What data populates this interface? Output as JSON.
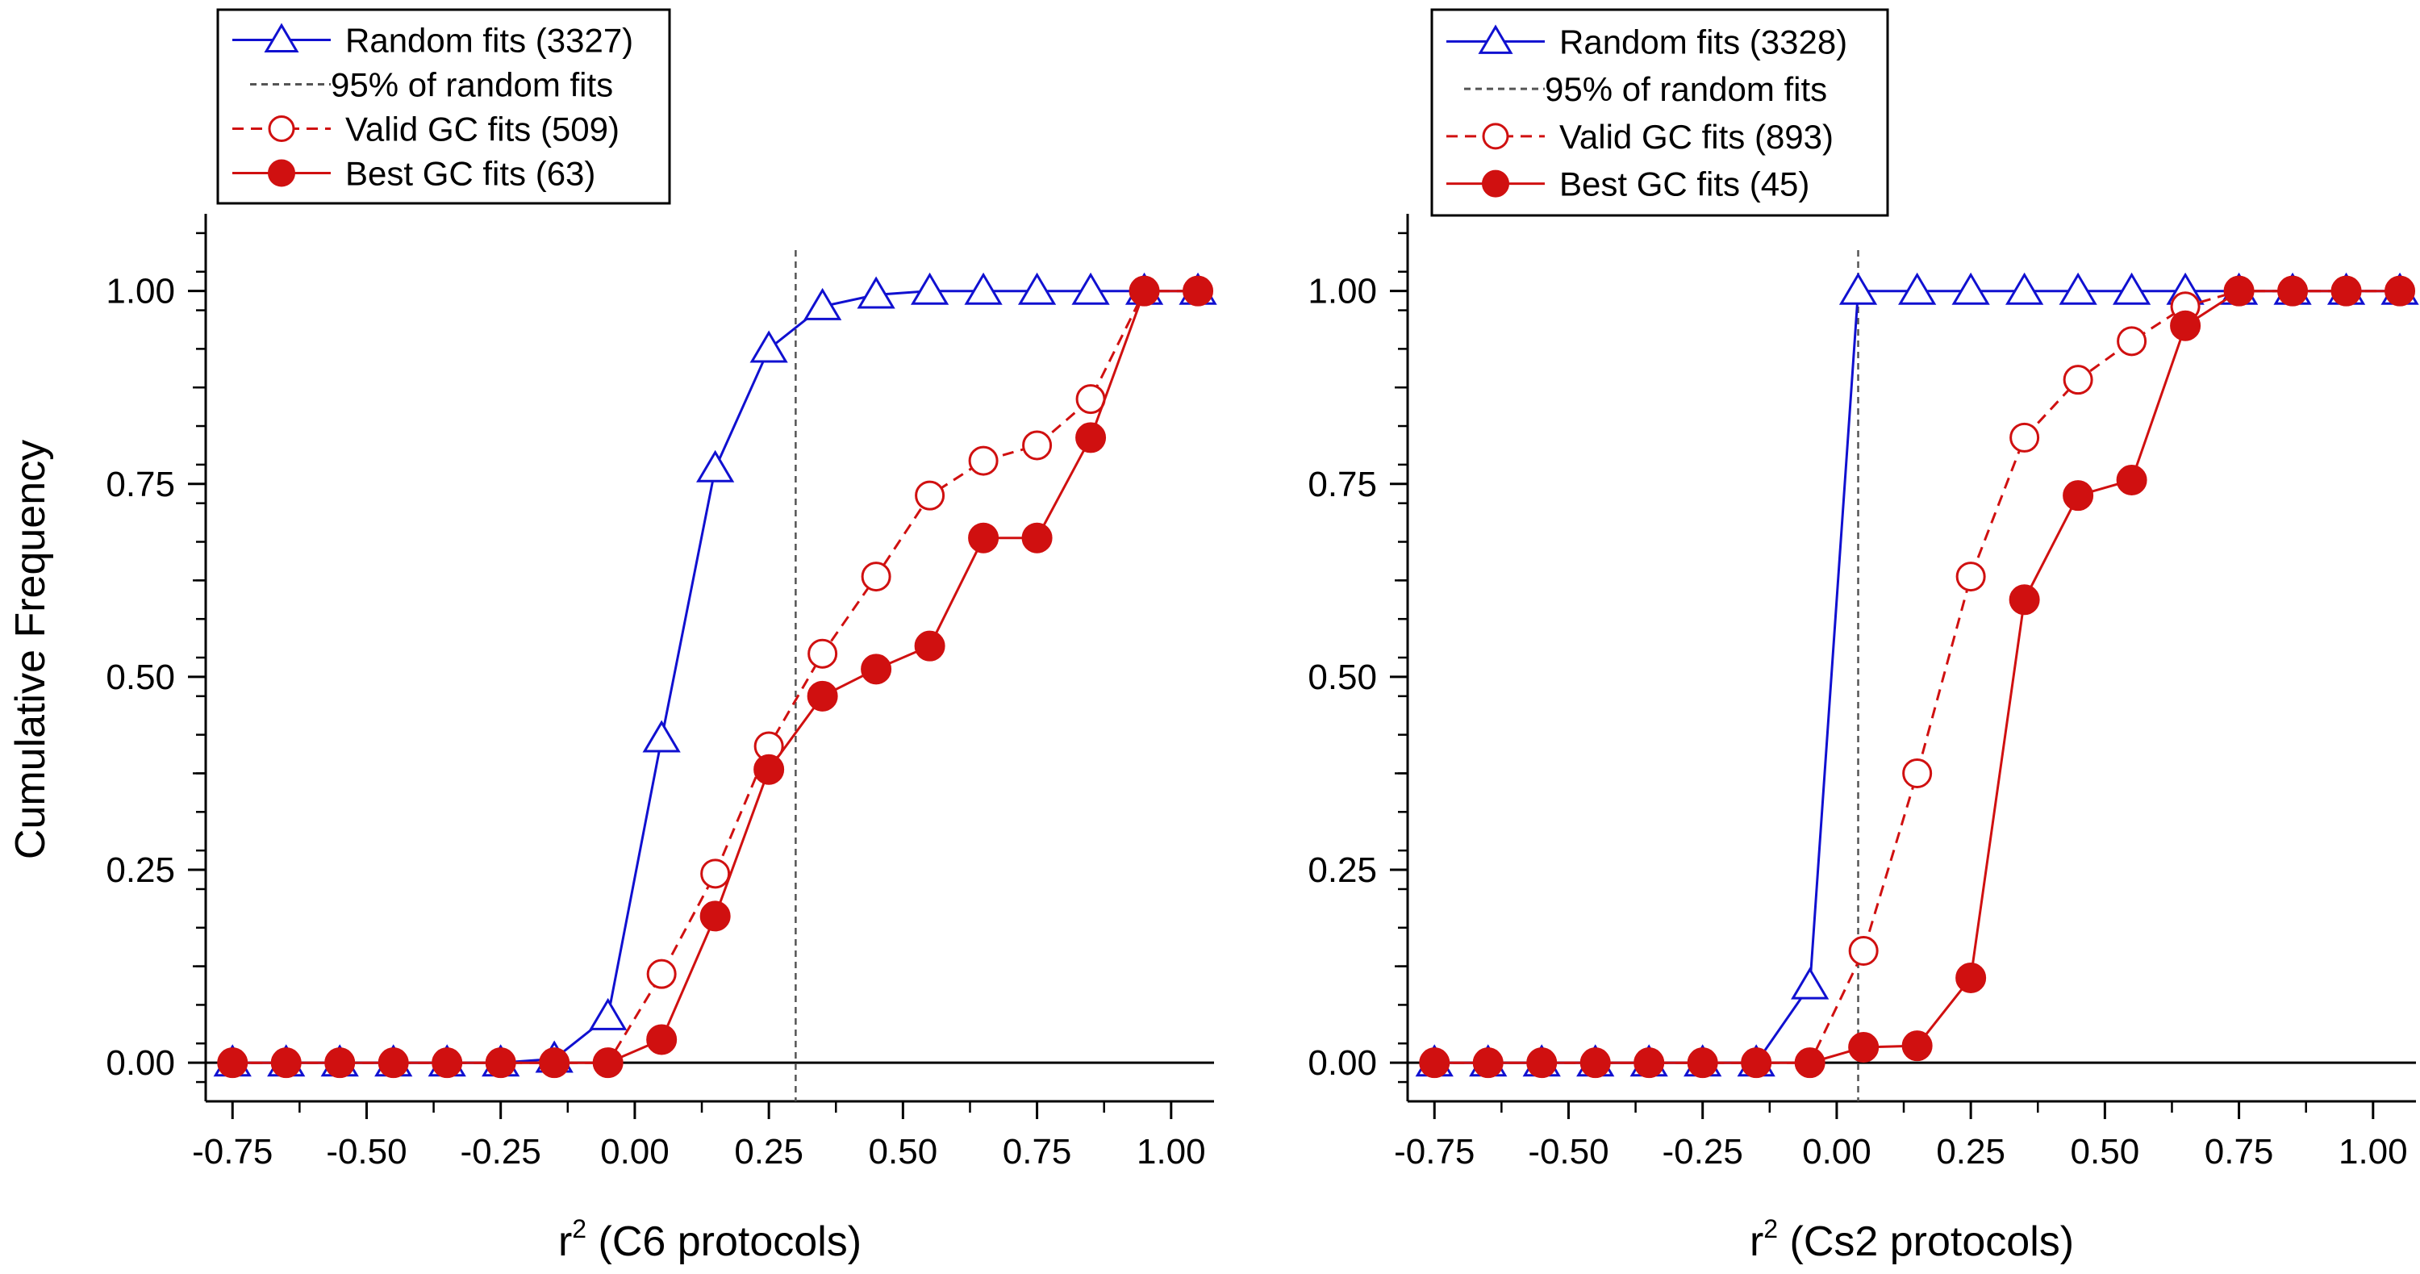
{
  "ylabel": "Cumulative Frequency",
  "colors": {
    "random": "#1010d0",
    "valid": "#d01010",
    "best": "#d01010",
    "threshold": "#555555"
  },
  "chart_data": [
    {
      "type": "line",
      "xlabel_pre": "r",
      "xlabel_sup": "2",
      "xlabel_post": " (C6 protocols)",
      "ylabel": "Cumulative Frequency",
      "xlim": [
        -0.8,
        1.08
      ],
      "ylim": [
        -0.05,
        1.1
      ],
      "xticks": [
        "-0.75",
        "-0.50",
        "-0.25",
        "0.00",
        "0.25",
        "0.50",
        "0.75",
        "1.00"
      ],
      "yticks": [
        "0.00",
        "0.25",
        "0.50",
        "0.75",
        "1.00"
      ],
      "x": [
        -0.75,
        -0.65,
        -0.55,
        -0.45,
        -0.35,
        -0.25,
        -0.15,
        -0.05,
        0.05,
        0.15,
        0.25,
        0.35,
        0.45,
        0.55,
        0.65,
        0.75,
        0.85,
        0.95,
        1.05
      ],
      "threshold_x": 0.3,
      "legend_position": "top-left",
      "series": [
        {
          "key": "random",
          "name": "Random fits (3327)",
          "marker": "open-triangle",
          "linestyle": "solid",
          "values": [
            0,
            0,
            0,
            0,
            0,
            0,
            0.005,
            0.06,
            0.42,
            0.77,
            0.925,
            0.98,
            0.995,
            1.0,
            1.0,
            1.0,
            1.0,
            1.0,
            1.0
          ]
        },
        {
          "key": "threshold",
          "name": "95% of random fits",
          "marker": "none",
          "linestyle": "dashed"
        },
        {
          "key": "valid",
          "name": "Valid GC fits (509)",
          "marker": "open-circle",
          "linestyle": "dashed",
          "values": [
            0,
            0,
            0,
            0,
            0,
            0,
            0,
            0,
            0.115,
            0.245,
            0.41,
            0.53,
            0.63,
            0.735,
            0.78,
            0.8,
            0.86,
            1.0,
            1.0
          ]
        },
        {
          "key": "best",
          "name": "Best GC fits (63)",
          "marker": "filled-circle",
          "linestyle": "solid",
          "values": [
            0,
            0,
            0,
            0,
            0,
            0,
            0,
            0,
            0.03,
            0.19,
            0.38,
            0.475,
            0.51,
            0.54,
            0.68,
            0.68,
            0.81,
            1.0,
            1.0
          ]
        }
      ]
    },
    {
      "type": "line",
      "xlabel_pre": "r",
      "xlabel_sup": "2",
      "xlabel_post": " (Cs2 protocols)",
      "ylabel": "",
      "xlim": [
        -0.8,
        1.08
      ],
      "ylim": [
        -0.05,
        1.1
      ],
      "xticks": [
        "-0.75",
        "-0.50",
        "-0.25",
        "0.00",
        "0.25",
        "0.50",
        "0.75",
        "1.00"
      ],
      "yticks": [
        "0.00",
        "0.25",
        "0.50",
        "0.75",
        "1.00"
      ],
      "threshold_x": 0.04,
      "legend_position": "top-left",
      "series": [
        {
          "key": "random",
          "name": "Random fits (3328)",
          "marker": "open-triangle",
          "linestyle": "solid",
          "x": [
            -0.75,
            -0.65,
            -0.55,
            -0.45,
            -0.35,
            -0.25,
            -0.15,
            -0.05,
            0.04,
            0.15,
            0.25,
            0.35,
            0.45,
            0.55,
            0.65,
            0.75,
            0.85,
            0.95,
            1.05
          ],
          "values": [
            0,
            0,
            0,
            0,
            0,
            0,
            0,
            0.1,
            1.0,
            1.0,
            1.0,
            1.0,
            1.0,
            1.0,
            1.0,
            1.0,
            1.0,
            1.0,
            1.0
          ]
        },
        {
          "key": "threshold",
          "name": "95% of random fits",
          "marker": "none",
          "linestyle": "dashed"
        },
        {
          "key": "valid",
          "name": "Valid GC fits (893)",
          "marker": "open-circle",
          "linestyle": "dashed",
          "x": [
            -0.75,
            -0.65,
            -0.55,
            -0.45,
            -0.35,
            -0.25,
            -0.15,
            -0.05,
            0.05,
            0.15,
            0.25,
            0.35,
            0.45,
            0.55,
            0.65,
            0.75,
            0.85,
            0.95,
            1.05
          ],
          "values": [
            0,
            0,
            0,
            0,
            0,
            0,
            0,
            0,
            0.145,
            0.375,
            0.63,
            0.81,
            0.885,
            0.935,
            0.98,
            1.0,
            1.0,
            1.0,
            1.0
          ]
        },
        {
          "key": "best",
          "name": "Best GC fits (45)",
          "marker": "filled-circle",
          "linestyle": "solid",
          "x": [
            -0.75,
            -0.65,
            -0.55,
            -0.45,
            -0.35,
            -0.25,
            -0.15,
            -0.05,
            0.05,
            0.15,
            0.25,
            0.35,
            0.45,
            0.55,
            0.65,
            0.75,
            0.85,
            0.95,
            1.05
          ],
          "values": [
            0,
            0,
            0,
            0,
            0,
            0,
            0,
            0,
            0.02,
            0.022,
            0.11,
            0.6,
            0.735,
            0.755,
            0.955,
            1.0,
            1.0,
            1.0,
            1.0
          ]
        }
      ]
    }
  ]
}
